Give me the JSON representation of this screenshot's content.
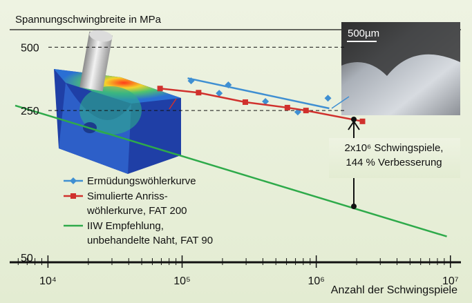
{
  "chart_data": {
    "type": "line",
    "title": "Spannungschwingbreite in MPa",
    "x_label": "Anzahl der Schwingspiele",
    "xscale": "log",
    "yscale": "log",
    "xlim": [
      5700,
      11700000
    ],
    "ylim": [
      47.5,
      610
    ],
    "xticks": [
      {
        "value": 10000,
        "label": "10⁴"
      },
      {
        "value": 100000,
        "label": "10⁵"
      },
      {
        "value": 1000000,
        "label": "10⁶"
      },
      {
        "value": 10000000,
        "label": "10⁷"
      }
    ],
    "yticks": [
      50,
      250,
      500
    ],
    "grid": true,
    "series": [
      {
        "name": "Ermüdungswöhlerkurve",
        "color": "#3f8fd2",
        "marker": "diamond",
        "x": [
          116700,
          189000,
          221000,
          418000,
          728000,
          1222000
        ],
        "values": [
          346,
          302,
          331,
          276,
          246,
          286
        ],
        "fit_x": [
          110000,
          1250000
        ],
        "fit_values": [
          356,
          256
        ]
      },
      {
        "name": "Simulierte Anriss-\nwöhlerkurve, FAT 200",
        "color": "#d0312d",
        "marker": "square",
        "x": [
          68500,
          132700,
          296000,
          609000,
          838000,
          2210000
        ],
        "values": [
          318,
          304,
          274,
          258,
          250,
          222
        ]
      },
      {
        "name": "IIW Empfehlung,\nunbehandelte Naht, FAT 90",
        "color": "#2eaa4a",
        "marker": "none",
        "x": [
          5700,
          9400000
        ],
        "values": [
          264,
          63
        ]
      }
    ],
    "annotation": "2x10⁶ Schwingspiele,\n144 % Verbesserung",
    "inset_scale_label": "500µm"
  }
}
